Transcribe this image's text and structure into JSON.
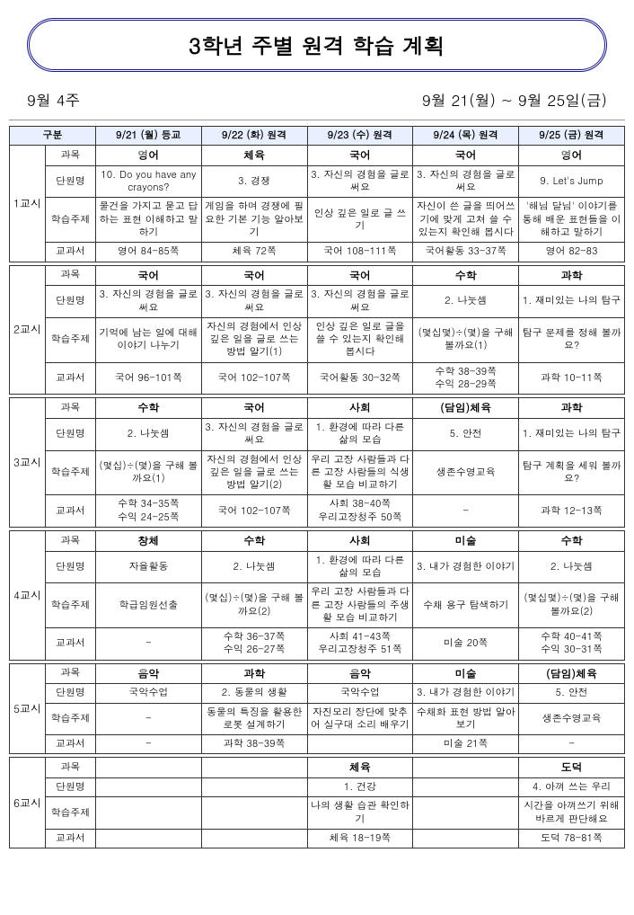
{
  "title": "3학년 주별 원격 학습 계획",
  "week": "9월 4주",
  "dateRange": "9월 21(월) ~ 9월 25일(금)",
  "headers": {
    "division": "구분",
    "days": [
      "9/21 (월) 등교",
      "9/22 (화) 원격",
      "9/23 (수) 원격",
      "9/24 (목) 원격",
      "9/25 (금) 원격"
    ]
  },
  "rowLabels": {
    "subject": "과목",
    "unit": "단원명",
    "topic": "학습주제",
    "textbook": "교과서"
  },
  "periods": [
    {
      "label": "1교시",
      "days": [
        {
          "subject": "영어",
          "unit": "10. Do you have any crayons?",
          "topic": "물건을 가지고 묻고 답하는 표현 이해하고 말하기",
          "textbook": "영어 84-85쪽"
        },
        {
          "subject": "체육",
          "unit": "3. 경쟁",
          "topic": "게임을 하며 경쟁에 필요한 기본 기능 알아보기",
          "textbook": "체육 72쪽"
        },
        {
          "subject": "국어",
          "unit": "3. 자신의 경험을 글로 써요",
          "topic": "인상 깊은 일로 글 쓰기",
          "textbook": "국어 108-111쪽"
        },
        {
          "subject": "국어",
          "unit": "3. 자신의 경험을 글로 써요",
          "topic": "자신이 쓴 글을 띄어쓰기에 맞게 고쳐 쓸 수 있는지 확인해 봅시다",
          "textbook": "국어활동 33-37쪽"
        },
        {
          "subject": "영어",
          "unit": "9. Let's Jump",
          "topic": "'해님 달님' 이야기를 통해 배운 표현들을 이해하고 말하기",
          "textbook": "영어 82-83"
        }
      ]
    },
    {
      "label": "2교시",
      "days": [
        {
          "subject": "국어",
          "unit": "3. 자신의 경험을 글로 써요",
          "topic": "기억에 남는 일에 대해 이야기 나누기",
          "textbook": "국어 96-101쪽"
        },
        {
          "subject": "국어",
          "unit": "3. 자신의 경험을 글로 써요",
          "topic": "자신의 경험에서 인상 깊은 일을 글로 쓰는 방법 알기(1)",
          "textbook": "국어 102-107쪽"
        },
        {
          "subject": "국어",
          "unit": "3. 자신의 경험을 글로 써요",
          "topic": "인상 깊은 일로 글을 쓸 수 있는지 확인해 봅시다",
          "textbook": "국어활동 30-32쪽"
        },
        {
          "subject": "수학",
          "unit": "2. 나눗셈",
          "topic": "(몇십몇)÷(몇)을 구해볼까요(1)",
          "textbook": "수학 38-39쪽\n수익 28-29쪽"
        },
        {
          "subject": "과학",
          "unit": "1. 재미있는 나의 탐구",
          "topic": "탐구 문제를 정해 볼까요?",
          "textbook": "과학 10-11쪽"
        }
      ]
    },
    {
      "label": "3교시",
      "days": [
        {
          "subject": "수학",
          "unit": "2. 나눗셈",
          "topic": "(몇십)÷(몇)을 구해 볼까요(1)",
          "textbook": "수학 34-35쪽\n수익 24-25쪽"
        },
        {
          "subject": "국어",
          "unit": "3. 자신의 경험을 글로 써요",
          "topic": "자신의 경험에서 인상 깊은 일을 글로 쓰는 방법 알기(2)",
          "textbook": "국어 102-107쪽"
        },
        {
          "subject": "사회",
          "unit": "1. 환경에 따라 다른 삶의 모습",
          "topic": "우리 고장 사람들과 다른 고장 사람들의 식생활 모습 비교하기",
          "textbook": "사회 38-40쪽\n우리고장청주 50쪽"
        },
        {
          "subject": "(담임)체육",
          "unit": "5. 안전",
          "topic": "생존수영교육",
          "textbook": "-"
        },
        {
          "subject": "과학",
          "unit": "1. 재미있는 나의 탐구",
          "topic": "탐구 계획을 세워 볼까요?",
          "textbook": "과학 12-13쪽"
        }
      ]
    },
    {
      "label": "4교시",
      "days": [
        {
          "subject": "창체",
          "unit": "자율활동",
          "topic": "학급임원선출",
          "textbook": "-"
        },
        {
          "subject": "수학",
          "unit": "2. 나눗셈",
          "topic": "(몇십)÷(몇)을 구해 볼까요(2)",
          "textbook": "수학 36-37쪽\n수익 26-27쪽"
        },
        {
          "subject": "사회",
          "unit": "1. 환경에 따라 다른 삶의 모습",
          "topic": "우리 고장 사람들과 다른 고장 사람들의 주생활 모습 비교하기",
          "textbook": "사회 41-43쪽\n우리고장청주 51쪽"
        },
        {
          "subject": "미술",
          "unit": "3. 내가 경험한 이야기",
          "topic": "수채 용구 탐색하기",
          "textbook": "미술 20쪽"
        },
        {
          "subject": "수학",
          "unit": "2. 나눗셈",
          "topic": "(몇십몇)÷(몇)을 구해볼까요(2)",
          "textbook": "수학 40-41쪽\n수익 30-31쪽"
        }
      ]
    },
    {
      "label": "5교시",
      "days": [
        {
          "subject": "음악",
          "unit": "국악수업",
          "topic": "-",
          "textbook": "-"
        },
        {
          "subject": "과학",
          "unit": "2. 동물의 생활",
          "topic": "동물의 특징을 활용한 로봇 설계하기",
          "textbook": "과학 38-39쪽"
        },
        {
          "subject": "음악",
          "unit": "국악수업",
          "topic": "자진모리 장단에 맞추어 실구대 소리 배우기",
          "textbook": ""
        },
        {
          "subject": "미술",
          "unit": "3. 내가 경험한 이야기",
          "topic": "수채화 표현 방법 알아보기",
          "textbook": "미술 21쪽"
        },
        {
          "subject": "(담임)체육",
          "unit": "5. 안전",
          "topic": "생존수영교육",
          "textbook": "-"
        }
      ]
    },
    {
      "label": "6교시",
      "days": [
        {
          "subject": "",
          "unit": "",
          "topic": "",
          "textbook": ""
        },
        {
          "subject": "",
          "unit": "",
          "topic": "",
          "textbook": ""
        },
        {
          "subject": "체육",
          "unit": "1. 건강",
          "topic": "나의 생활 습관 확인하기",
          "textbook": "체육 18-19쪽"
        },
        {
          "subject": "",
          "unit": "",
          "topic": "",
          "textbook": ""
        },
        {
          "subject": "도덕",
          "unit": "4. 아껴 쓰는 우리",
          "topic": "시간을 아껴쓰기 위해 바르게 판단해요",
          "textbook": "도덕 78-81쪽"
        }
      ]
    }
  ]
}
